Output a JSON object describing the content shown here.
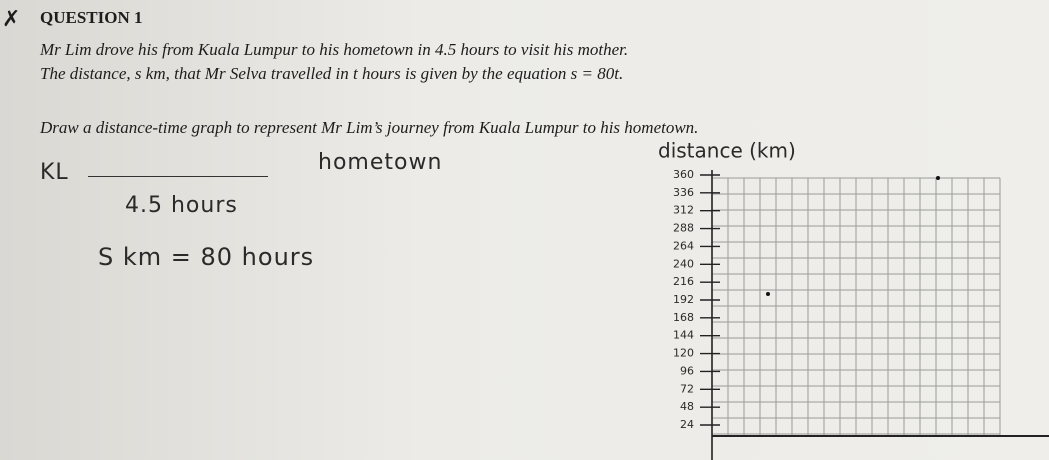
{
  "question": {
    "number": "QUESTION 1",
    "lines": [
      "Mr Lim drove his from Kuala Lumpur to his hometown in 4.5 hours to visit his mother.",
      "The distance, s km, that Mr Selva travelled in t hours is given by the equation s = 80t.",
      "Draw a distance-time graph to represent Mr Lim’s journey from Kuala Lumpur to his hometown."
    ]
  },
  "answer": {
    "from": "KL",
    "to": "hometown",
    "time": "4.5 hours",
    "equation": "S km = 80 hours"
  },
  "graph": {
    "axis_label": "distance (km)",
    "ticks": [
      360,
      336,
      312,
      288,
      264,
      240,
      216,
      192,
      168,
      144,
      120,
      96,
      72,
      48,
      24
    ]
  }
}
